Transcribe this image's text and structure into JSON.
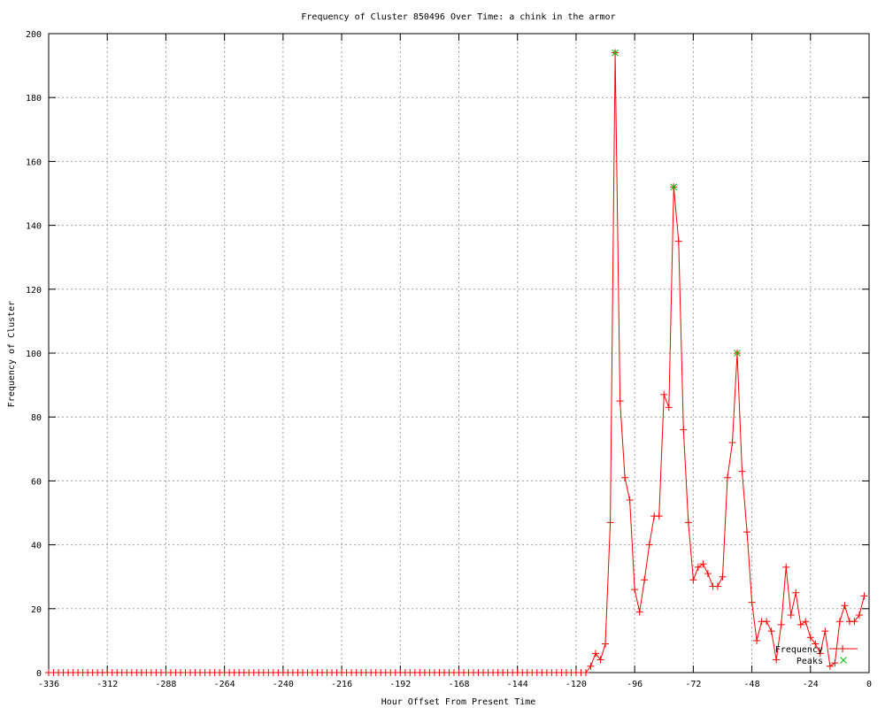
{
  "chart_data": {
    "type": "line",
    "title": "Frequency of Cluster 850496 Over Time: a chink in the armor",
    "xlabel": "Hour Offset From Present Time",
    "ylabel": "Frequency of Cluster",
    "xlim": [
      -336,
      0
    ],
    "ylim": [
      0,
      200
    ],
    "x_ticks": [
      -336,
      -312,
      -288,
      -264,
      -240,
      -216,
      -192,
      -168,
      -144,
      -120,
      -96,
      -72,
      -48,
      -24,
      0
    ],
    "y_ticks": [
      0,
      20,
      40,
      60,
      80,
      100,
      120,
      140,
      160,
      180,
      200
    ],
    "grid": true,
    "legend_position": "bottom-right",
    "series": [
      {
        "name": "Frequency",
        "color": "#ff0000",
        "marker": "plus",
        "x": [
          -336,
          -334,
          -332,
          -330,
          -328,
          -326,
          -324,
          -322,
          -320,
          -318,
          -316,
          -314,
          -312,
          -310,
          -308,
          -306,
          -304,
          -302,
          -300,
          -298,
          -296,
          -294,
          -292,
          -290,
          -288,
          -286,
          -284,
          -282,
          -280,
          -278,
          -276,
          -274,
          -272,
          -270,
          -268,
          -266,
          -264,
          -262,
          -260,
          -258,
          -256,
          -254,
          -252,
          -250,
          -248,
          -246,
          -244,
          -242,
          -240,
          -238,
          -236,
          -234,
          -232,
          -230,
          -228,
          -226,
          -224,
          -222,
          -220,
          -218,
          -216,
          -214,
          -212,
          -210,
          -208,
          -206,
          -204,
          -202,
          -200,
          -198,
          -196,
          -194,
          -192,
          -190,
          -188,
          -186,
          -184,
          -182,
          -180,
          -178,
          -176,
          -174,
          -172,
          -170,
          -168,
          -166,
          -164,
          -162,
          -160,
          -158,
          -156,
          -154,
          -152,
          -150,
          -148,
          -146,
          -144,
          -142,
          -140,
          -138,
          -136,
          -134,
          -132,
          -130,
          -128,
          -126,
          -124,
          -122,
          -120,
          -118,
          -116,
          -114,
          -112,
          -110,
          -108,
          -106,
          -104,
          -102,
          -100,
          -98,
          -96,
          -94,
          -92,
          -90,
          -88,
          -86,
          -84,
          -82,
          -80,
          -78,
          -76,
          -74,
          -72,
          -70,
          -68,
          -66,
          -64,
          -62,
          -60,
          -58,
          -56,
          -54,
          -52,
          -50,
          -48,
          -46,
          -44,
          -42,
          -40,
          -38,
          -36,
          -34,
          -32,
          -30,
          -28,
          -26,
          -24,
          -22,
          -20,
          -18,
          -16,
          -14,
          -12,
          -10,
          -8,
          -6,
          -4,
          -2
        ],
        "y": [
          0,
          0,
          0,
          0,
          0,
          0,
          0,
          0,
          0,
          0,
          0,
          0,
          0,
          0,
          0,
          0,
          0,
          0,
          0,
          0,
          0,
          0,
          0,
          0,
          0,
          0,
          0,
          0,
          0,
          0,
          0,
          0,
          0,
          0,
          0,
          0,
          0,
          0,
          0,
          0,
          0,
          0,
          0,
          0,
          0,
          0,
          0,
          0,
          0,
          0,
          0,
          0,
          0,
          0,
          0,
          0,
          0,
          0,
          0,
          0,
          0,
          0,
          0,
          0,
          0,
          0,
          0,
          0,
          0,
          0,
          0,
          0,
          0,
          0,
          0,
          0,
          0,
          0,
          0,
          0,
          0,
          0,
          0,
          0,
          0,
          0,
          0,
          0,
          0,
          0,
          0,
          0,
          0,
          0,
          0,
          0,
          0,
          0,
          0,
          0,
          0,
          0,
          0,
          0,
          0,
          0,
          0,
          0,
          0,
          0,
          0,
          2,
          6,
          4,
          9,
          47,
          194,
          85,
          61,
          54,
          26,
          19,
          29,
          40,
          49,
          49,
          87,
          83,
          152,
          135,
          76,
          47,
          29,
          33,
          34,
          31,
          27,
          27,
          30,
          61,
          72,
          100,
          63,
          44,
          22,
          10,
          16,
          16,
          13,
          4,
          15,
          33,
          18,
          25,
          15,
          16,
          11,
          9,
          6,
          13,
          2,
          3,
          16,
          21,
          16,
          16,
          18,
          24
        ]
      },
      {
        "name": "Peaks",
        "color": "#00c000",
        "marker": "x",
        "x": [
          -104,
          -80,
          -54
        ],
        "y": [
          194,
          152,
          100
        ]
      }
    ]
  }
}
